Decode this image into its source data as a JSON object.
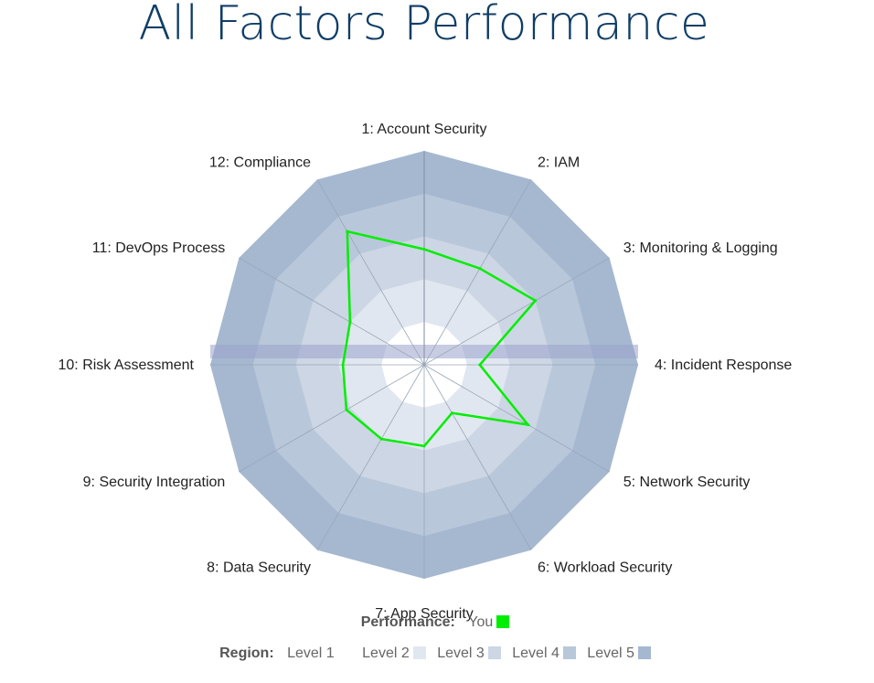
{
  "title": "All Factors Performance",
  "chart_data": {
    "type": "radar",
    "title": "All Factors Performance",
    "axes": [
      "1: Account Security",
      "2: IAM",
      "3: Monitoring & Logging",
      "4: Incident Response",
      "5: Network Security",
      "6: Workload Security",
      "7: App Security",
      "8: Data Security",
      "9: Security Integration",
      "10: Risk Assessment",
      "11: DevOps Process",
      "12: Compliance"
    ],
    "range": [
      0,
      5
    ],
    "regions": [
      {
        "name": "Level 1",
        "value": 1,
        "color": "#ffffff"
      },
      {
        "name": "Level 2",
        "value": 2,
        "color": "#e1e7f0"
      },
      {
        "name": "Level 3",
        "value": 3,
        "color": "#ccd6e4"
      },
      {
        "name": "Level 4",
        "value": 4,
        "color": "#b9c7da"
      },
      {
        "name": "Level 5",
        "value": 5,
        "color": "#a5b8d0"
      }
    ],
    "series": [
      {
        "name": "You",
        "color": "#00ee00",
        "values": [
          2.7,
          2.6,
          3.0,
          1.3,
          2.8,
          1.3,
          1.9,
          2.0,
          2.1,
          1.9,
          2.0,
          3.6
        ]
      }
    ]
  },
  "legend": {
    "performance_label": "Performance:",
    "performance_item": "You",
    "region_label": "Region:",
    "region_items": [
      "Level 1",
      "Level 2",
      "Level 3",
      "Level 4",
      "Level 5"
    ]
  }
}
